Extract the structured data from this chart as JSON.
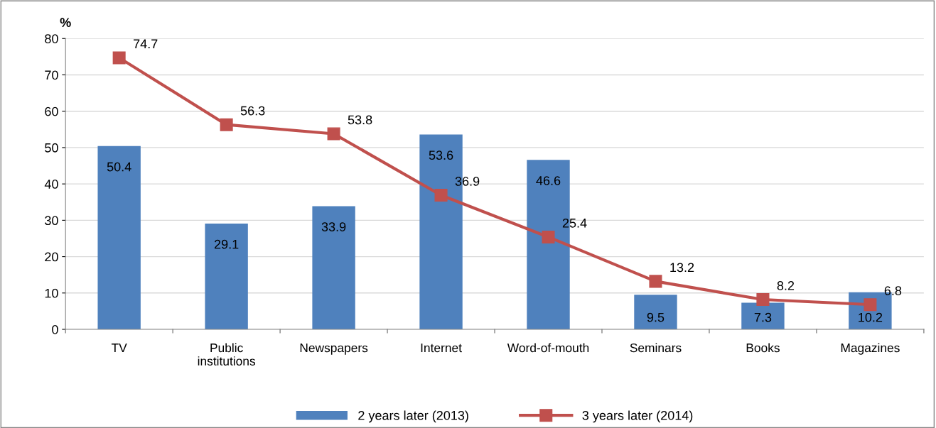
{
  "chart_data": {
    "type": "bar",
    "ylabel": "%",
    "categories": [
      "TV",
      "Public\ninstitutions",
      "Newspapers",
      "Internet",
      "Word-of-mouth",
      "Seminars",
      "Books",
      "Magazines"
    ],
    "series": [
      {
        "name": "2 years later (2013)",
        "color": "#4f81bd",
        "values": [
          50.4,
          29.1,
          33.9,
          53.6,
          46.6,
          9.5,
          7.3,
          10.2
        ]
      },
      {
        "name": "3 years later (2014)",
        "type": "line",
        "color": "#c0504d",
        "values": [
          74.7,
          56.3,
          53.8,
          36.9,
          25.4,
          13.2,
          8.2,
          6.8
        ]
      }
    ],
    "ylim": [
      0,
      80
    ],
    "yticks": [
      0,
      10,
      20,
      30,
      40,
      50,
      60,
      70,
      80
    ],
    "grid": "y",
    "legend": "bottom",
    "marker": "square",
    "line_style": "solid",
    "data_labels": true
  }
}
